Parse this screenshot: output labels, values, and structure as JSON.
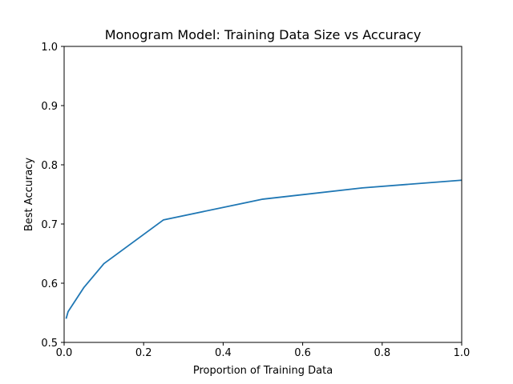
{
  "chart_data": {
    "type": "line",
    "title": "Monogram Model: Training Data Size vs Accuracy",
    "xlabel": "Proportion of Training Data",
    "ylabel": "Best Accuracy",
    "xlim": [
      0.0,
      1.0
    ],
    "ylim": [
      0.5,
      1.0
    ],
    "xticks": [
      "0.0",
      "0.2",
      "0.4",
      "0.6",
      "0.8",
      "1.0"
    ],
    "yticks": [
      "0.5",
      "0.6",
      "0.7",
      "0.8",
      "0.9",
      "1.0"
    ],
    "grid": false,
    "series": [
      {
        "color": "#1f77b4",
        "x": [
          0.005,
          0.01,
          0.05,
          0.1,
          0.25,
          0.5,
          0.75,
          1.0
        ],
        "y": [
          0.54,
          0.552,
          0.593,
          0.633,
          0.707,
          0.742,
          0.761,
          0.774
        ]
      }
    ]
  }
}
